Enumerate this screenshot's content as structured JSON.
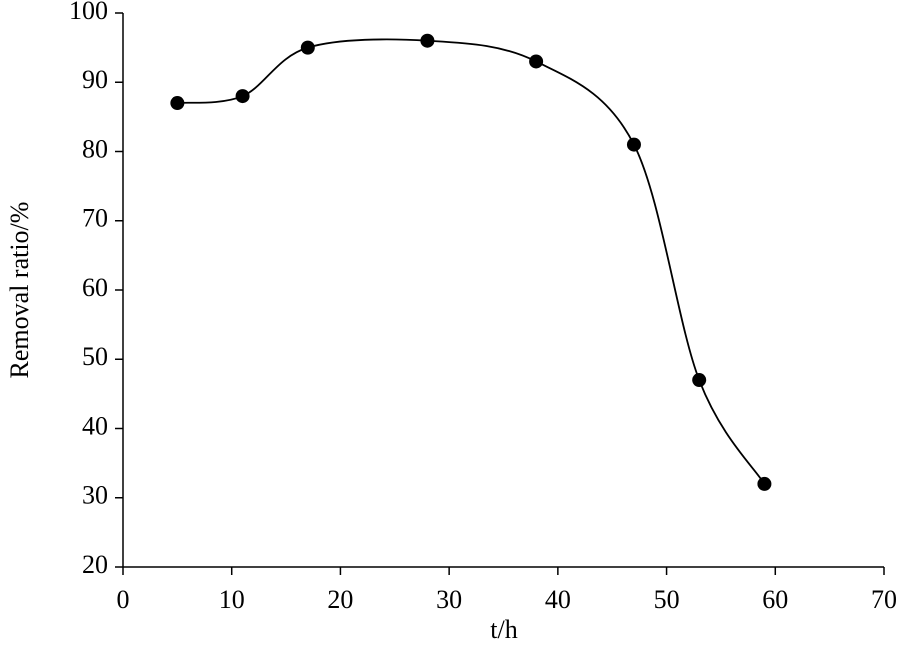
{
  "chart_data": {
    "type": "line",
    "x_label": "t/h",
    "y_label": "Removal ratio/%",
    "x": [
      5,
      11,
      17,
      28,
      38,
      47,
      53,
      59
    ],
    "series": [
      {
        "color": "#000000",
        "values": [
          87,
          88,
          95,
          96,
          93,
          81,
          47,
          32
        ]
      }
    ],
    "xlim": [
      0,
      70
    ],
    "xticks": [
      0,
      10,
      20,
      30,
      40,
      50,
      60,
      70
    ],
    "ylim": [
      20,
      100
    ],
    "yticks": [
      20,
      30,
      40,
      50,
      60,
      70,
      80,
      90,
      100
    ],
    "grid": false,
    "smooth": true,
    "markers": true
  }
}
